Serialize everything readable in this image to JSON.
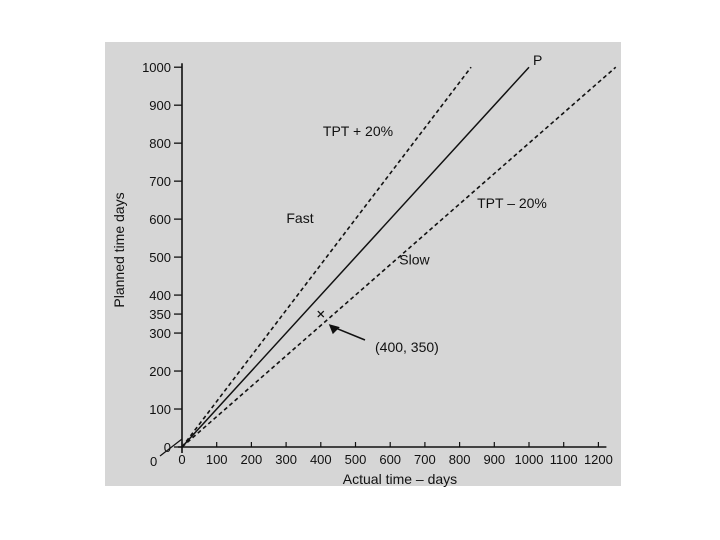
{
  "chart_data": {
    "type": "line",
    "xlabel": "Actual time – days",
    "ylabel": "Planned time days",
    "xlim": [
      0,
      1200
    ],
    "ylim": [
      0,
      1000
    ],
    "x_ticks": [
      0,
      100,
      200,
      300,
      400,
      500,
      600,
      700,
      800,
      900,
      1000,
      1100,
      1200
    ],
    "y_ticks": [
      0,
      100,
      200,
      300,
      350,
      400,
      500,
      600,
      700,
      800,
      900,
      1000
    ],
    "grid": false,
    "series": [
      {
        "name": "P",
        "style": "solid",
        "x": [
          0,
          1000
        ],
        "y": [
          0,
          1000
        ]
      },
      {
        "name": "TPT + 20%",
        "style": "dashed",
        "x": [
          0,
          833
        ],
        "y": [
          0,
          1000
        ]
      },
      {
        "name": "TPT – 20%",
        "style": "dashed",
        "x": [
          0,
          1250
        ],
        "y": [
          0,
          1000
        ]
      }
    ],
    "regions": [
      {
        "label": "Fast",
        "x": 340,
        "y": 590
      },
      {
        "label": "Slow",
        "x": 670,
        "y": 480
      }
    ],
    "point": {
      "x": 400,
      "y": 350,
      "label": "(400, 350)"
    }
  }
}
